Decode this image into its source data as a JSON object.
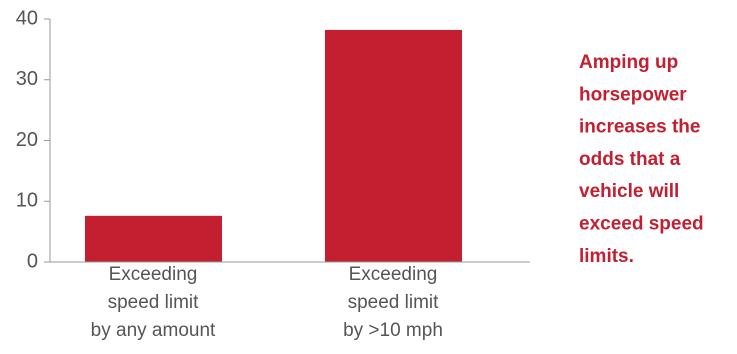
{
  "chart_data": {
    "type": "bar",
    "categories": [
      [
        "Exceeding",
        "speed limit",
        "by any amount"
      ],
      [
        "Exceeding",
        "speed limit",
        "by >10 mph"
      ]
    ],
    "values": [
      7.6,
      38.2
    ],
    "color": "#c41f30",
    "ylim": [
      0,
      40
    ],
    "yticks": [
      0,
      10,
      20,
      30,
      40
    ],
    "annotation": [
      "Amping up",
      "horsepower",
      "increases the",
      "odds that a",
      "vehicle will",
      "exceed speed",
      "limits."
    ]
  }
}
